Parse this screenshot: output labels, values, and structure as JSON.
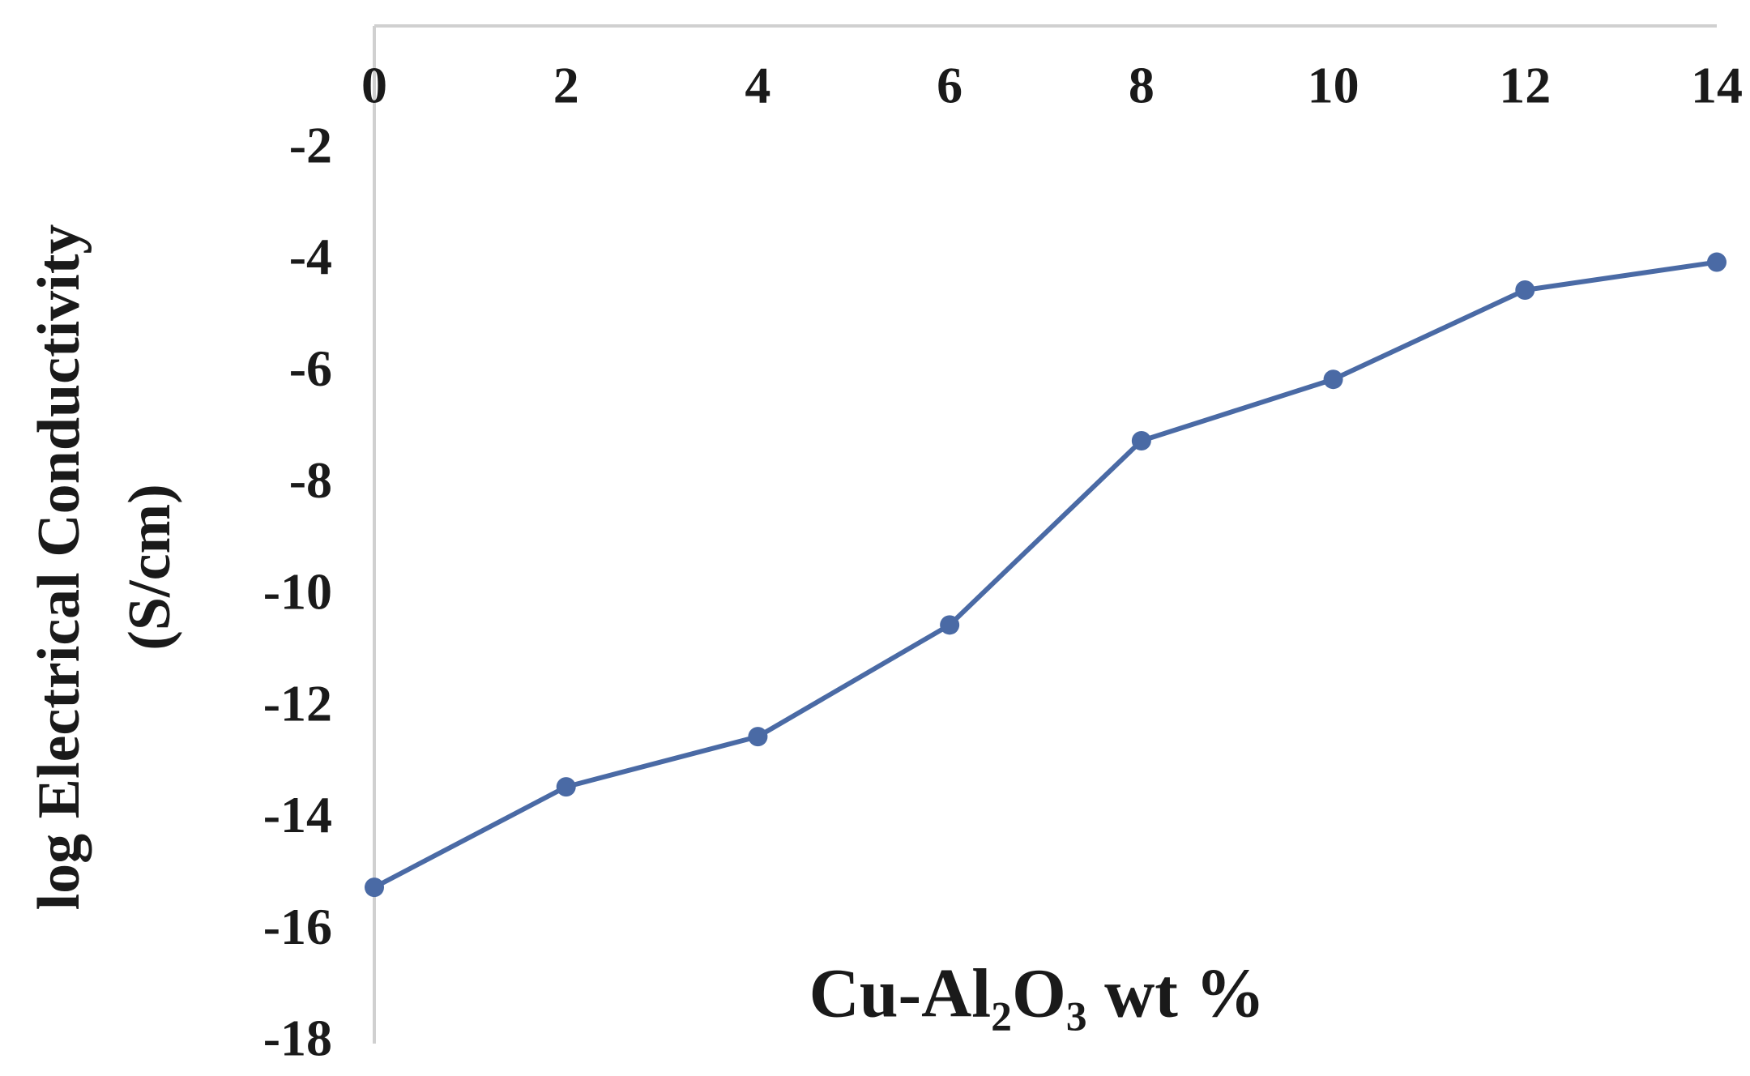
{
  "chart_data": {
    "type": "line",
    "x_label": "Cu-Al₂O₃ wt %",
    "y_label": [
      "log Electrical Conductivity",
      "(S/cm)"
    ],
    "x": [
      0,
      2,
      4,
      6,
      8,
      10,
      12,
      14
    ],
    "series": [
      {
        "name": "log Electrical Conductivity",
        "color": "#4a6aa5",
        "values": [
          -15.2,
          -13.4,
          -12.5,
          -10.5,
          -7.2,
          -6.1,
          -4.5,
          -4.0
        ]
      }
    ],
    "xlim": [
      0,
      14
    ],
    "xticks": [
      0,
      2,
      4,
      6,
      8,
      10,
      12,
      14
    ],
    "ylim": [
      -18,
      0
    ],
    "yticks": [
      -18,
      -16,
      -14,
      -12,
      -10,
      -8,
      -6,
      -4,
      -2
    ],
    "grid": false,
    "legend": false
  }
}
